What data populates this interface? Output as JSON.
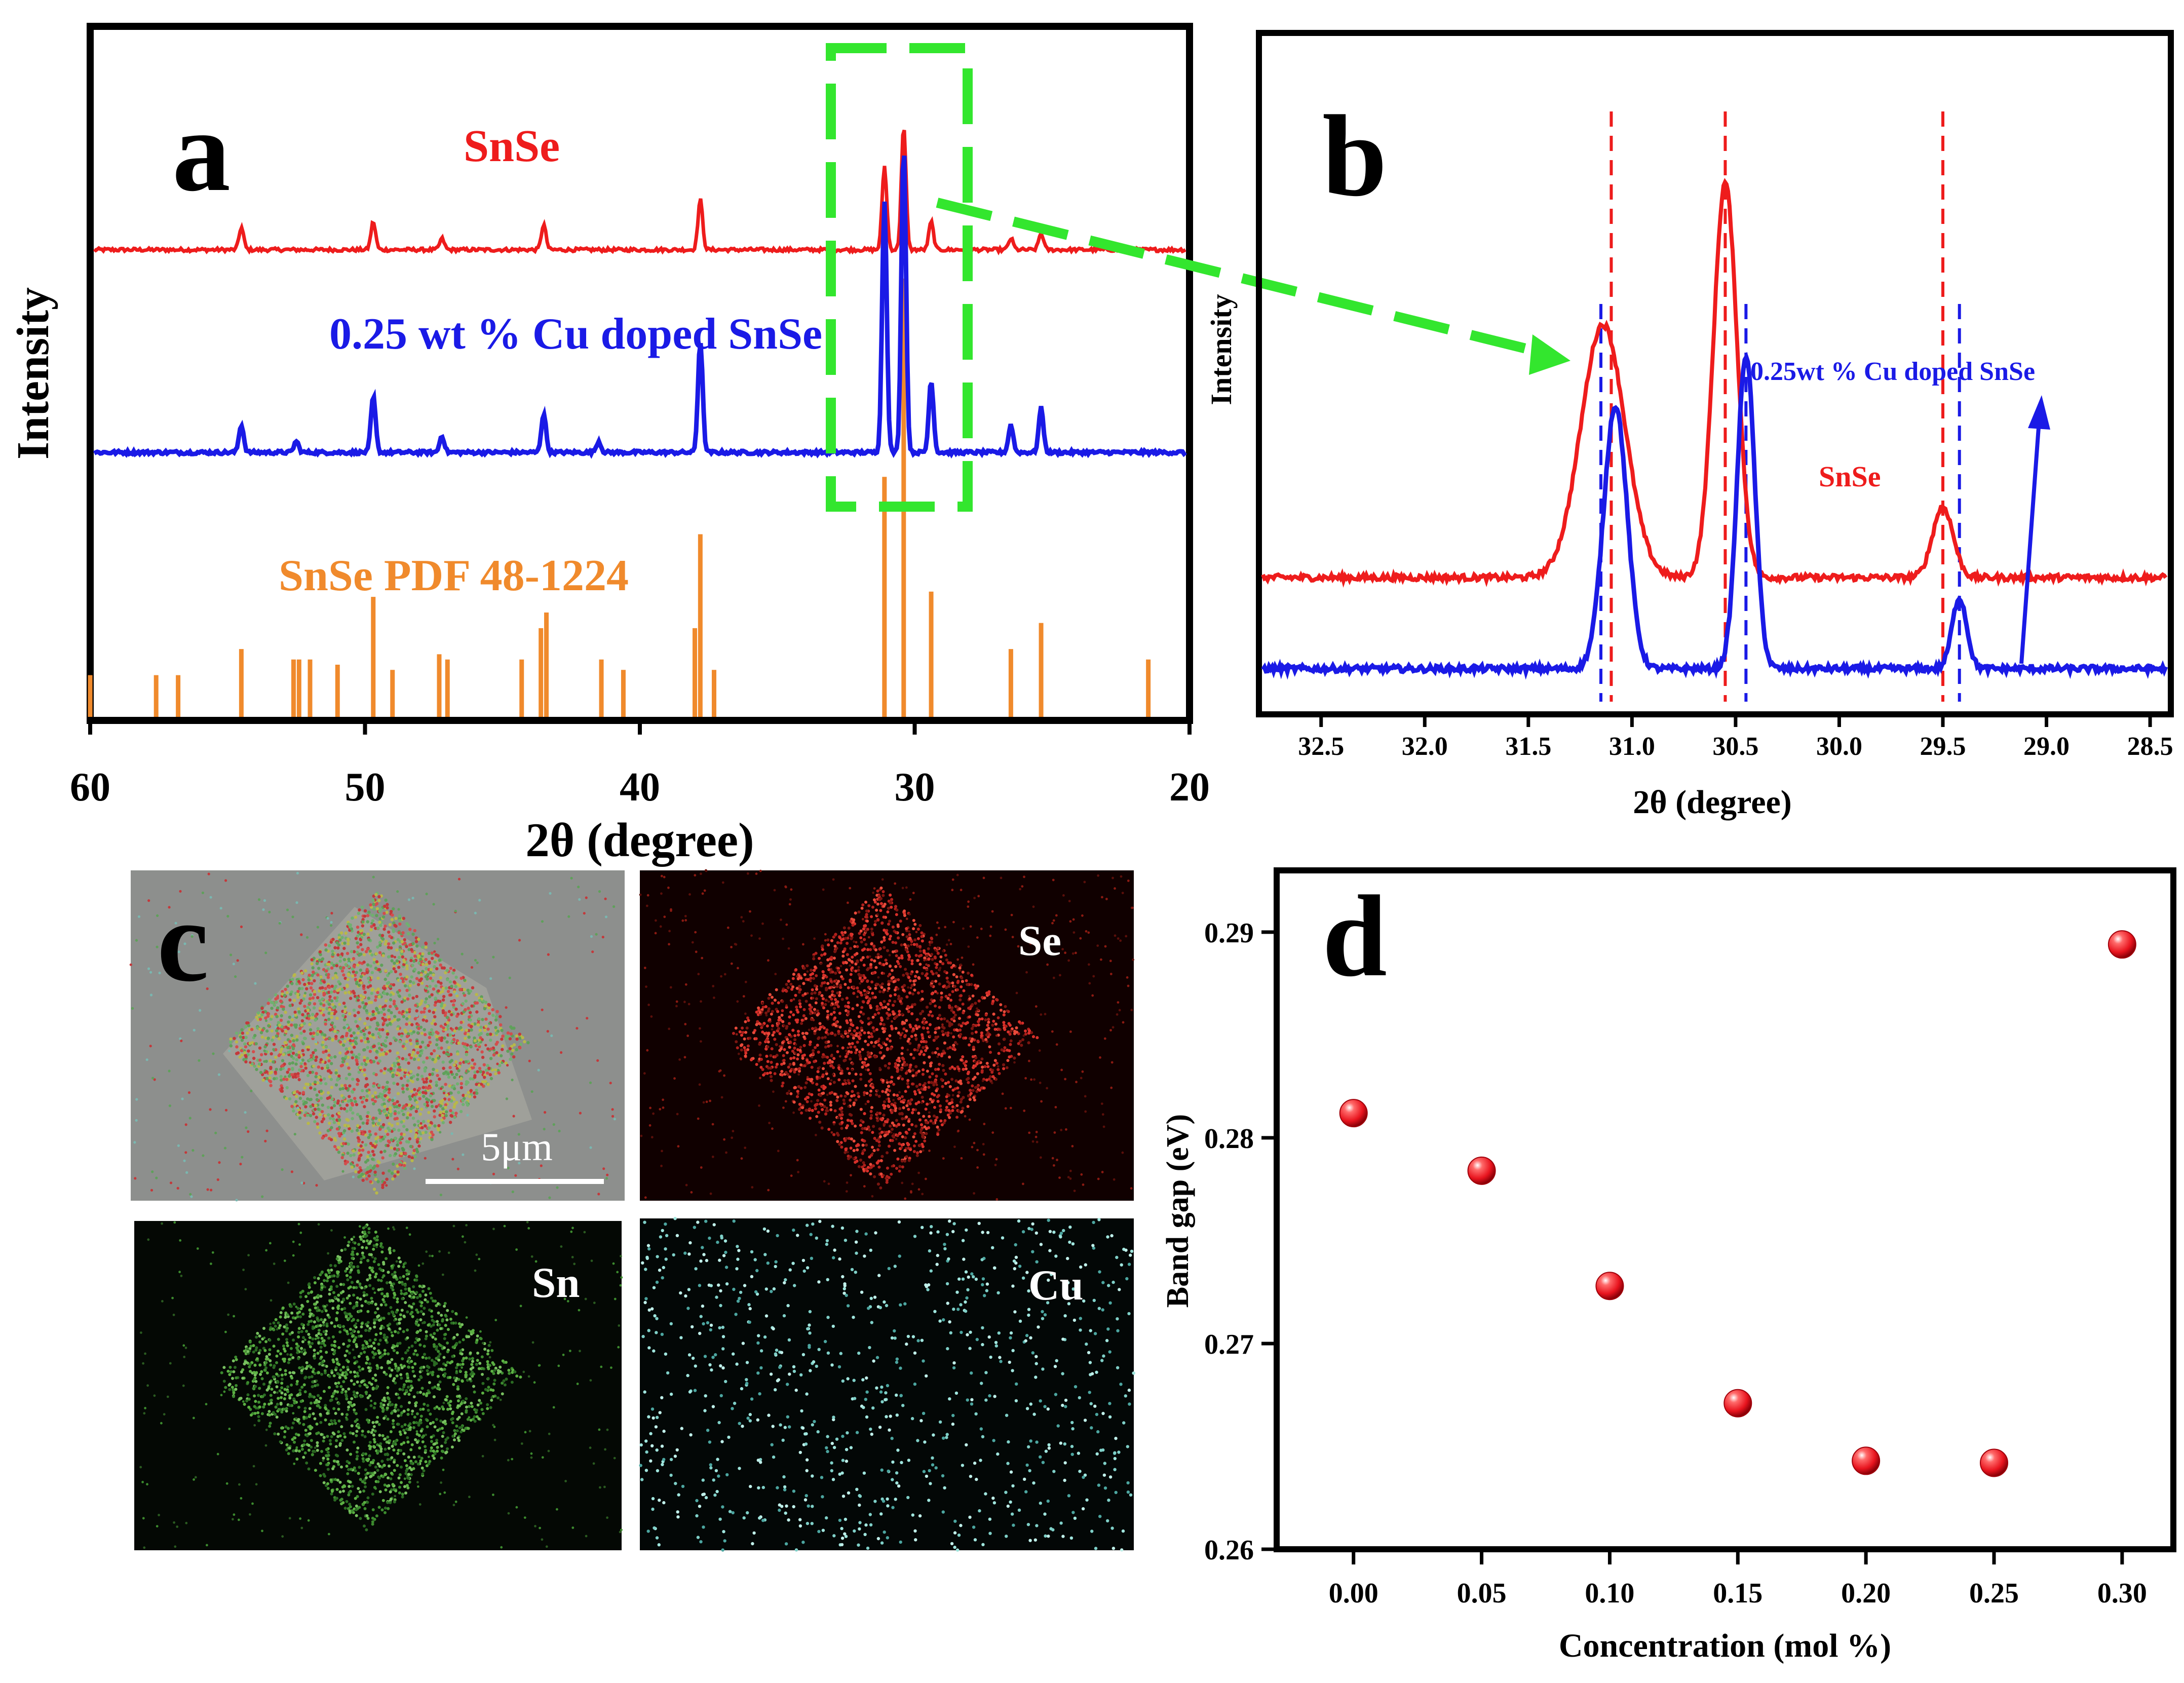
{
  "colors": {
    "red": "#ee1c1c",
    "blue": "#1a1ae6",
    "orange": "#f08a2c",
    "green": "#33e62e",
    "black": "#000000",
    "dot": "#e8141e"
  },
  "chart_data": [
    {
      "panel": "a",
      "type": "line",
      "panel_letter": "a",
      "xlabel": "2θ (degree)",
      "ylabel": "Intensity",
      "xlim": [
        60,
        20
      ],
      "x_ticks": [
        "60",
        "50",
        "40",
        "30",
        "20"
      ],
      "legend": {
        "snse": "SnSe",
        "cu": "0.25 wt % Cu doped SnSe",
        "pdf": "SnSe PDF 48-1224"
      },
      "series": [
        {
          "name": "SnSe",
          "color": "red",
          "peaks": [
            [
              54.5,
              0.04
            ],
            [
              49.7,
              0.05
            ],
            [
              47.2,
              0.02
            ],
            [
              43.5,
              0.045
            ],
            [
              37.8,
              0.09
            ],
            [
              31.1,
              0.15
            ],
            [
              30.4,
              0.22
            ],
            [
              29.4,
              0.05
            ],
            [
              26.5,
              0.02
            ],
            [
              25.4,
              0.03
            ]
          ]
        },
        {
          "name": "0.25 wt % Cu doped SnSe",
          "color": "blue",
          "peaks": [
            [
              54.5,
              0.05
            ],
            [
              52.5,
              0.02
            ],
            [
              49.7,
              0.1
            ],
            [
              47.2,
              0.03
            ],
            [
              43.5,
              0.07
            ],
            [
              41.5,
              0.02
            ],
            [
              37.8,
              0.2
            ],
            [
              31.1,
              0.45
            ],
            [
              30.4,
              0.55
            ],
            [
              29.4,
              0.13
            ],
            [
              26.5,
              0.05
            ],
            [
              25.4,
              0.08
            ]
          ]
        },
        {
          "name": "SnSe PDF 48-1224",
          "color": "orange",
          "sticks": [
            [
              60.0,
              0.08
            ],
            [
              57.6,
              0.08
            ],
            [
              56.8,
              0.08
            ],
            [
              54.5,
              0.13
            ],
            [
              52.6,
              0.11
            ],
            [
              52.4,
              0.11
            ],
            [
              52.0,
              0.11
            ],
            [
              51.0,
              0.1
            ],
            [
              49.7,
              0.23
            ],
            [
              49.0,
              0.09
            ],
            [
              47.3,
              0.12
            ],
            [
              47.0,
              0.11
            ],
            [
              44.3,
              0.11
            ],
            [
              43.6,
              0.17
            ],
            [
              43.4,
              0.2
            ],
            [
              41.4,
              0.11
            ],
            [
              40.6,
              0.09
            ],
            [
              38.0,
              0.17
            ],
            [
              37.8,
              0.35
            ],
            [
              37.3,
              0.09
            ],
            [
              31.1,
              0.46
            ],
            [
              30.4,
              0.84
            ],
            [
              29.4,
              0.24
            ],
            [
              26.5,
              0.13
            ],
            [
              25.4,
              0.18
            ],
            [
              21.5,
              0.11
            ]
          ]
        }
      ]
    },
    {
      "panel": "b",
      "type": "line",
      "panel_letter": "b",
      "xlabel": "2θ (degree)",
      "ylabel": "Intensity",
      "xlim": [
        32.8,
        28.4
      ],
      "x_ticks": [
        "32.5",
        "32.0",
        "31.5",
        "31.0",
        "30.5",
        "30.0",
        "29.5",
        "29.0",
        "28.5"
      ],
      "labels": {
        "cu": "0.25wt % Cu doped SnSe",
        "snse": "SnSe"
      },
      "series": [
        {
          "name": "SnSe",
          "color": "red",
          "peaks": [
            [
              31.14,
              0.5,
              0.15
            ],
            [
              30.55,
              0.78,
              0.08
            ],
            [
              29.5,
              0.14,
              0.07
            ]
          ]
        },
        {
          "name": "0.25wt % Cu doped SnSe",
          "color": "blue",
          "peaks": [
            [
              31.08,
              0.52,
              0.08
            ],
            [
              30.45,
              0.62,
              0.06
            ],
            [
              29.42,
              0.14,
              0.05
            ]
          ]
        }
      ],
      "markers": {
        "red": [
          31.1,
          30.55,
          29.5
        ],
        "blue": [
          31.15,
          30.45,
          29.42
        ]
      }
    },
    {
      "panel": "c",
      "type": "image",
      "panel_letter": "c",
      "scale_bar": "5μm",
      "maps": [
        "Se",
        "Sn",
        "Cu"
      ]
    },
    {
      "panel": "d",
      "type": "scatter",
      "panel_letter": "d",
      "xlabel": "Concentration (mol %)",
      "ylabel": "Band gap (eV)",
      "xlim": [
        -0.03,
        0.32
      ],
      "ylim": [
        0.26,
        0.293
      ],
      "x_ticks": [
        "0.00",
        "0.05",
        "0.10",
        "0.15",
        "0.20",
        "0.25",
        "0.30"
      ],
      "y_ticks": [
        "0.26",
        "0.27",
        "0.28",
        "0.29"
      ],
      "x": [
        0.0,
        0.05,
        0.1,
        0.15,
        0.2,
        0.25,
        0.3
      ],
      "y": [
        0.2812,
        0.2784,
        0.2728,
        0.2671,
        0.2643,
        0.2642,
        0.2894
      ]
    }
  ]
}
